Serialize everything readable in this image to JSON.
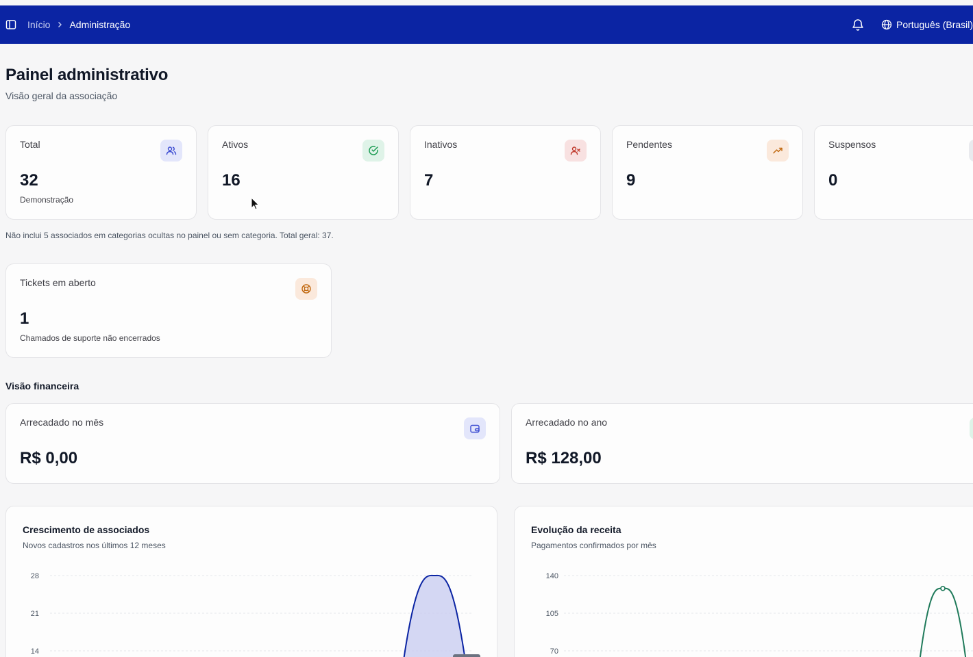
{
  "header": {
    "breadcrumb_home": "Início",
    "breadcrumb_current": "Administração",
    "language": "Português (Brasil)",
    "bg_color": "#0b24a3"
  },
  "page": {
    "title": "Painel administrativo",
    "subtitle": "Visão geral da associação"
  },
  "stats": [
    {
      "label": "Total",
      "value": "32",
      "hint": "Demonstração",
      "icon": "users-icon",
      "color": "#3b4bd1"
    },
    {
      "label": "Ativos",
      "value": "16",
      "hint": "",
      "icon": "check-circle-icon",
      "color": "#1f9d55"
    },
    {
      "label": "Inativos",
      "value": "7",
      "hint": "",
      "icon": "user-x-icon",
      "color": "#c0392b"
    },
    {
      "label": "Pendentes",
      "value": "9",
      "hint": "",
      "icon": "trending-up-icon",
      "color": "#c26a12"
    },
    {
      "label": "Suspensos",
      "value": "0",
      "hint": "",
      "icon": "ban-icon",
      "color": "#6b7280"
    }
  ],
  "note": "Não inclui 5 associados em categorias ocultas no painel ou sem categoria. Total geral: 37.",
  "tickets": {
    "label": "Tickets em aberto",
    "value": "1",
    "hint": "Chamados de suporte não encerrados",
    "icon": "life-buoy-icon"
  },
  "finance": {
    "section_title": "Visão financeira",
    "month": {
      "label": "Arrecadado no mês",
      "value": "R$ 0,00",
      "icon": "wallet-icon"
    },
    "year": {
      "label": "Arrecadado no ano",
      "value": "R$ 128,00",
      "icon": "wallet-icon"
    }
  },
  "chart_data": [
    {
      "type": "area",
      "title": "Crescimento de associados",
      "subtitle": "Novos cadastros nos últimos 12 meses",
      "y_ticks_visible": [
        "28",
        "21",
        "14"
      ],
      "ylim": [
        0,
        28
      ],
      "peak_value": 28,
      "color": "#0b24a3",
      "fill": "#c9cdf0"
    },
    {
      "type": "line",
      "title": "Evolução da receita",
      "subtitle": "Pagamentos confirmados por mês",
      "y_ticks_visible": [
        "140",
        "105",
        "70"
      ],
      "ylim": [
        0,
        140
      ],
      "peak_value": 128,
      "color": "#1f7a5a"
    }
  ]
}
